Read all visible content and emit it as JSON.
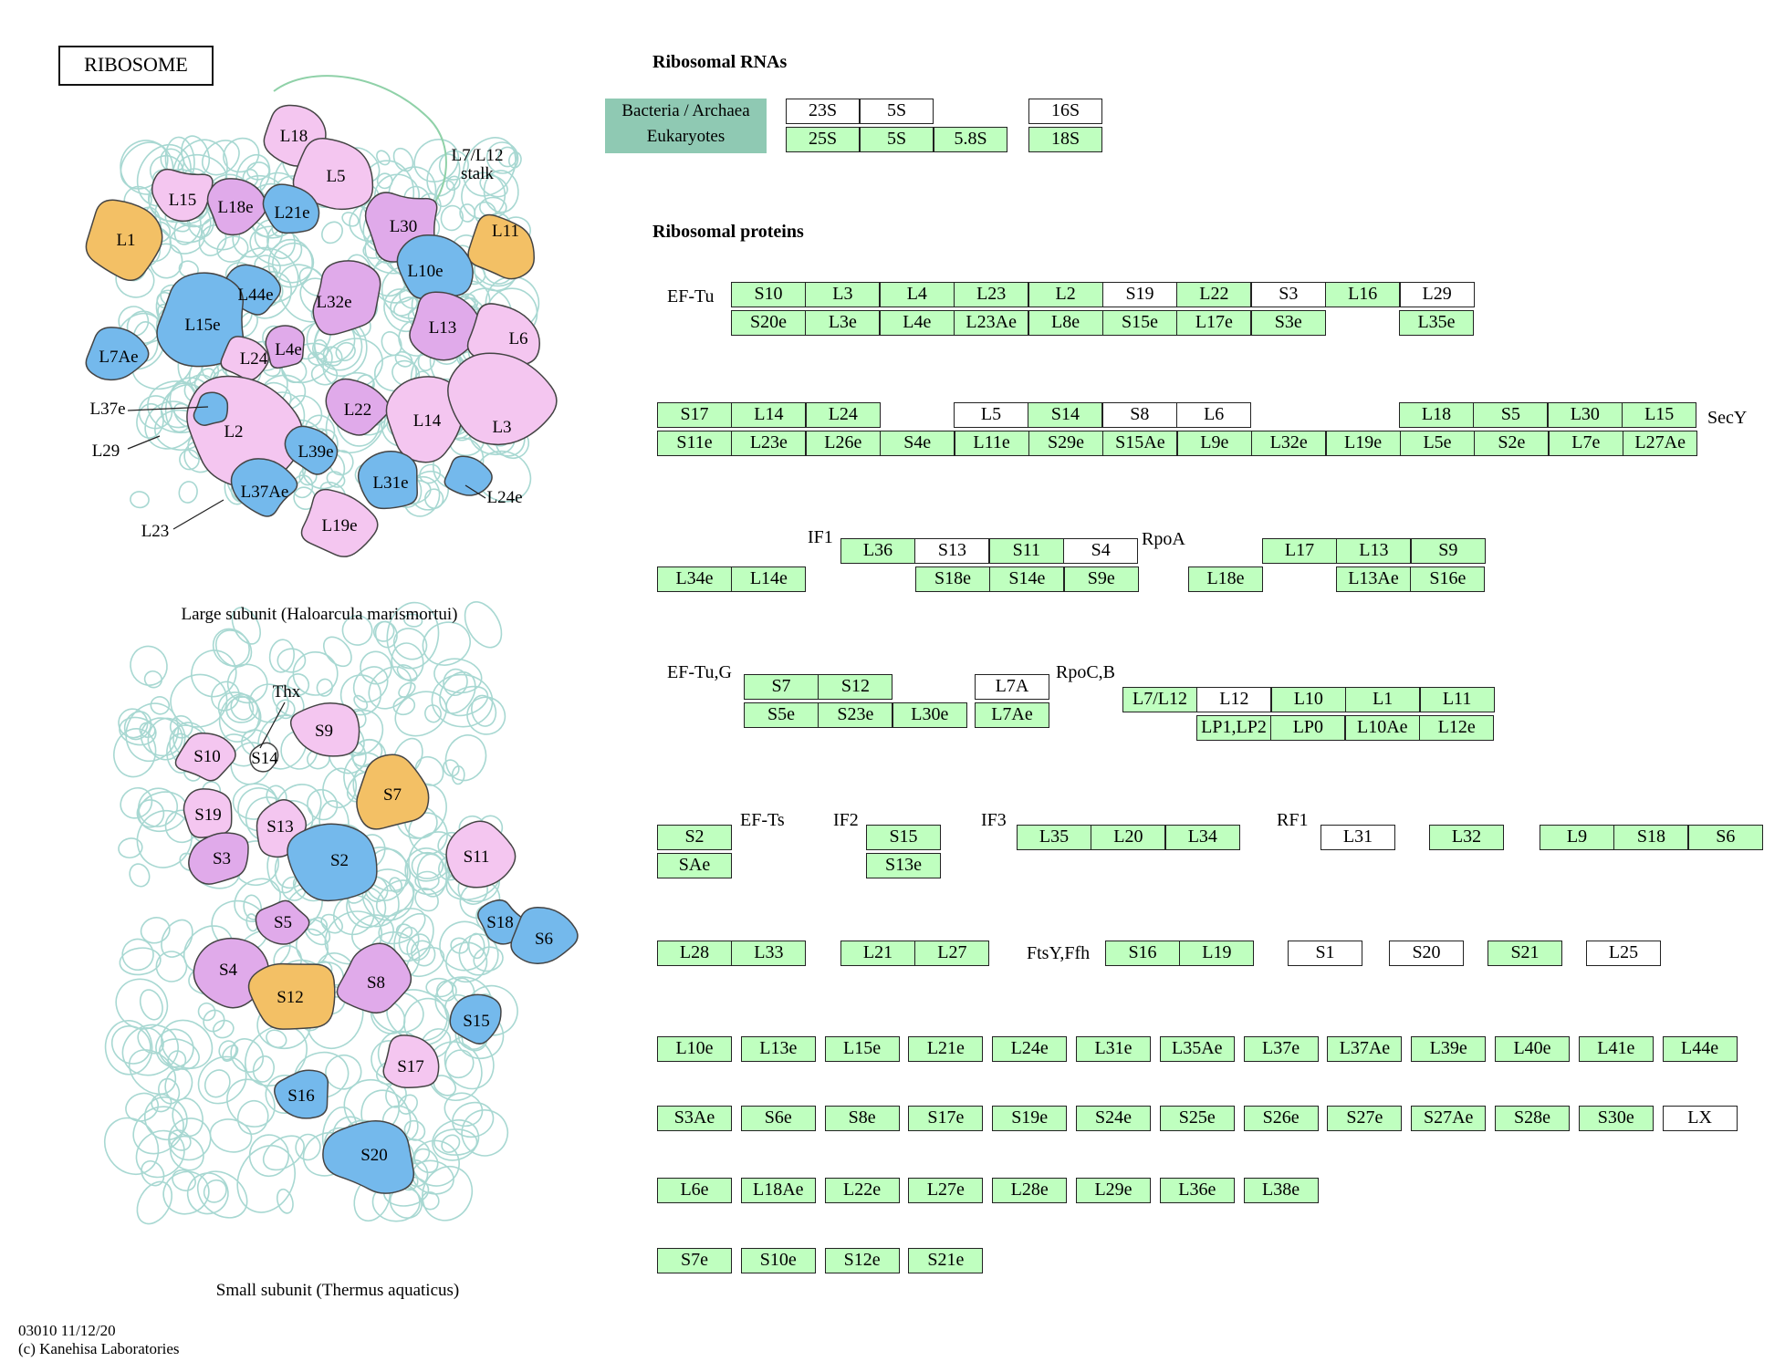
{
  "title": "RIBOSOME",
  "colors": {
    "green_box": "#bfffbf",
    "legend_bg": "#8fc9b3",
    "pink": "#f4c6f0",
    "purple": "#e0aaea",
    "blue": "#74b9ec",
    "orange": "#f3c065",
    "rna": "#a8d8d2"
  },
  "headers": {
    "rna": "Ribosomal RNAs",
    "proteins": "Ribosomal proteins"
  },
  "rna_legend": {
    "bacteria": "Bacteria / Archaea",
    "eukaryotes": "Eukaryotes"
  },
  "labels": {
    "ef_tu": "EF-Tu",
    "secy": "SecY",
    "if1": "IF1",
    "rpoa": "RpoA",
    "ef_tu_g": "EF-Tu,G",
    "rpocb": "RpoC,B",
    "ef_ts": "EF-Ts",
    "if2": "IF2",
    "if3": "IF3",
    "rf1": "RF1",
    "ftsy": "FtsY,Ffh"
  },
  "large_subunit": {
    "caption": "Large subunit (Haloarcula marismortui)",
    "callouts": {
      "stalk_line1": "L7/L12",
      "stalk_line2": "stalk",
      "l37e": "L37e",
      "l29": "L29",
      "l23": "L23",
      "l24e": "L24e"
    },
    "proteins": [
      {
        "label": "L1",
        "color": "orange"
      },
      {
        "label": "L11",
        "color": "orange"
      },
      {
        "label": "L18",
        "color": "pink"
      },
      {
        "label": "L5",
        "color": "pink"
      },
      {
        "label": "L15",
        "color": "pink"
      },
      {
        "label": "L18e",
        "color": "purple"
      },
      {
        "label": "L21e",
        "color": "blue"
      },
      {
        "label": "L30",
        "color": "purple"
      },
      {
        "label": "L10e",
        "color": "blue"
      },
      {
        "label": "L44e",
        "color": "blue"
      },
      {
        "label": "L32e",
        "color": "purple"
      },
      {
        "label": "L13",
        "color": "purple"
      },
      {
        "label": "L6",
        "color": "pink"
      },
      {
        "label": "L15e",
        "color": "blue"
      },
      {
        "label": "L7Ae",
        "color": "blue"
      },
      {
        "label": "L24",
        "color": "pink"
      },
      {
        "label": "L4e",
        "color": "purple"
      },
      {
        "label": "L2",
        "color": "pink"
      },
      {
        "label": "L22",
        "color": "purple"
      },
      {
        "label": "L14",
        "color": "pink"
      },
      {
        "label": "L3",
        "color": "pink"
      },
      {
        "label": "L39e",
        "color": "blue"
      },
      {
        "label": "L31e",
        "color": "blue"
      },
      {
        "label": "L37Ae",
        "color": "blue"
      },
      {
        "label": "L19e",
        "color": "pink"
      },
      {
        "label": "",
        "color": "blue"
      },
      {
        "label": "",
        "color": "blue"
      }
    ]
  },
  "small_subunit": {
    "caption": "Small subunit (Thermus aquaticus)",
    "callouts": {
      "thx": "Thx"
    },
    "proteins": [
      {
        "label": "S9",
        "color": "pink"
      },
      {
        "label": "S10",
        "color": "pink"
      },
      {
        "label": "S14",
        "color": "white"
      },
      {
        "label": "S7",
        "color": "orange"
      },
      {
        "label": "S19",
        "color": "pink"
      },
      {
        "label": "S13",
        "color": "pink"
      },
      {
        "label": "S3",
        "color": "purple"
      },
      {
        "label": "S2",
        "color": "blue"
      },
      {
        "label": "S11",
        "color": "pink"
      },
      {
        "label": "S18",
        "color": "blue"
      },
      {
        "label": "S6",
        "color": "blue"
      },
      {
        "label": "S5",
        "color": "purple"
      },
      {
        "label": "S4",
        "color": "purple"
      },
      {
        "label": "S12",
        "color": "orange"
      },
      {
        "label": "S8",
        "color": "purple"
      },
      {
        "label": "S15",
        "color": "blue"
      },
      {
        "label": "S17",
        "color": "pink"
      },
      {
        "label": "S16",
        "color": "blue"
      },
      {
        "label": "S20",
        "color": "blue"
      }
    ]
  },
  "rna_boxes": [
    {
      "label": "23S",
      "green": false
    },
    {
      "label": "5S",
      "green": false
    },
    {
      "label": "16S",
      "green": false
    },
    {
      "label": "25S",
      "green": true
    },
    {
      "label": "5S",
      "green": true
    },
    {
      "label": "5.8S",
      "green": true
    },
    {
      "label": "18S",
      "green": true
    }
  ],
  "protein_boxes": [
    {
      "label": "S10",
      "green": true
    },
    {
      "label": "L3",
      "green": true
    },
    {
      "label": "L4",
      "green": true
    },
    {
      "label": "L23",
      "green": true
    },
    {
      "label": "L2",
      "green": true
    },
    {
      "label": "S19",
      "green": false
    },
    {
      "label": "L22",
      "green": true
    },
    {
      "label": "S3",
      "green": false
    },
    {
      "label": "L16",
      "green": true
    },
    {
      "label": "L29",
      "green": false
    },
    {
      "label": "S20e",
      "green": true
    },
    {
      "label": "L3e",
      "green": true
    },
    {
      "label": "L4e",
      "green": true
    },
    {
      "label": "L23Ae",
      "green": true
    },
    {
      "label": "L8e",
      "green": true
    },
    {
      "label": "S15e",
      "green": true
    },
    {
      "label": "L17e",
      "green": true
    },
    {
      "label": "S3e",
      "green": true
    },
    {
      "label": "L35e",
      "green": true
    },
    {
      "label": "S17",
      "green": true
    },
    {
      "label": "L14",
      "green": true
    },
    {
      "label": "L24",
      "green": true
    },
    {
      "label": "L5",
      "green": false
    },
    {
      "label": "S14",
      "green": true
    },
    {
      "label": "S8",
      "green": false
    },
    {
      "label": "L6",
      "green": false
    },
    {
      "label": "L18",
      "green": true
    },
    {
      "label": "S5",
      "green": true
    },
    {
      "label": "L30",
      "green": true
    },
    {
      "label": "L15",
      "green": true
    },
    {
      "label": "S11e",
      "green": true
    },
    {
      "label": "L23e",
      "green": true
    },
    {
      "label": "L26e",
      "green": true
    },
    {
      "label": "S4e",
      "green": true
    },
    {
      "label": "L11e",
      "green": true
    },
    {
      "label": "S29e",
      "green": true
    },
    {
      "label": "S15Ae",
      "green": true
    },
    {
      "label": "L9e",
      "green": true
    },
    {
      "label": "L32e",
      "green": true
    },
    {
      "label": "L19e",
      "green": true
    },
    {
      "label": "L5e",
      "green": true
    },
    {
      "label": "S2e",
      "green": true
    },
    {
      "label": "L7e",
      "green": true
    },
    {
      "label": "L27Ae",
      "green": true
    },
    {
      "label": "L36",
      "green": true
    },
    {
      "label": "S13",
      "green": false
    },
    {
      "label": "S11",
      "green": true
    },
    {
      "label": "S4",
      "green": false
    },
    {
      "label": "L17",
      "green": true
    },
    {
      "label": "L13",
      "green": true
    },
    {
      "label": "S9",
      "green": true
    },
    {
      "label": "L34e",
      "green": true
    },
    {
      "label": "L14e",
      "green": true
    },
    {
      "label": "S18e",
      "green": true
    },
    {
      "label": "S14e",
      "green": true
    },
    {
      "label": "S9e",
      "green": true
    },
    {
      "label": "L18e",
      "green": true
    },
    {
      "label": "L13Ae",
      "green": true
    },
    {
      "label": "S16e",
      "green": true
    },
    {
      "label": "S7",
      "green": true
    },
    {
      "label": "S12",
      "green": true
    },
    {
      "label": "L7A",
      "green": false
    },
    {
      "label": "L7/L12",
      "green": true
    },
    {
      "label": "L12",
      "green": false
    },
    {
      "label": "L10",
      "green": true
    },
    {
      "label": "L1",
      "green": true
    },
    {
      "label": "L11",
      "green": true
    },
    {
      "label": "S5e",
      "green": true
    },
    {
      "label": "S23e",
      "green": true
    },
    {
      "label": "L30e",
      "green": true
    },
    {
      "label": "L7Ae",
      "green": true
    },
    {
      "label": "LP1,LP2",
      "green": true
    },
    {
      "label": "LP0",
      "green": true
    },
    {
      "label": "L10Ae",
      "green": true
    },
    {
      "label": "L12e",
      "green": true
    },
    {
      "label": "S2",
      "green": true
    },
    {
      "label": "SAe",
      "green": true
    },
    {
      "label": "S15",
      "green": true
    },
    {
      "label": "S13e",
      "green": true
    },
    {
      "label": "L35",
      "green": true
    },
    {
      "label": "L20",
      "green": true
    },
    {
      "label": "L34",
      "green": true
    },
    {
      "label": "L31",
      "green": false
    },
    {
      "label": "L32",
      "green": true
    },
    {
      "label": "L9",
      "green": true
    },
    {
      "label": "S18",
      "green": true
    },
    {
      "label": "S6",
      "green": true
    },
    {
      "label": "L28",
      "green": true
    },
    {
      "label": "L33",
      "green": true
    },
    {
      "label": "L21",
      "green": true
    },
    {
      "label": "L27",
      "green": true
    },
    {
      "label": "S16",
      "green": true
    },
    {
      "label": "L19",
      "green": true
    },
    {
      "label": "S1",
      "green": false
    },
    {
      "label": "S20",
      "green": false
    },
    {
      "label": "S21",
      "green": true
    },
    {
      "label": "L25",
      "green": false
    },
    {
      "label": "L10e",
      "green": true
    },
    {
      "label": "L13e",
      "green": true
    },
    {
      "label": "L15e",
      "green": true
    },
    {
      "label": "L21e",
      "green": true
    },
    {
      "label": "L24e",
      "green": true
    },
    {
      "label": "L31e",
      "green": true
    },
    {
      "label": "L35Ae",
      "green": true
    },
    {
      "label": "L37e",
      "green": true
    },
    {
      "label": "L37Ae",
      "green": true
    },
    {
      "label": "L39e",
      "green": true
    },
    {
      "label": "L40e",
      "green": true
    },
    {
      "label": "L41e",
      "green": true
    },
    {
      "label": "L44e",
      "green": true
    },
    {
      "label": "S3Ae",
      "green": true
    },
    {
      "label": "S6e",
      "green": true
    },
    {
      "label": "S8e",
      "green": true
    },
    {
      "label": "S17e",
      "green": true
    },
    {
      "label": "S19e",
      "green": true
    },
    {
      "label": "S24e",
      "green": true
    },
    {
      "label": "S25e",
      "green": true
    },
    {
      "label": "S26e",
      "green": true
    },
    {
      "label": "S27e",
      "green": true
    },
    {
      "label": "S27Ae",
      "green": true
    },
    {
      "label": "S28e",
      "green": true
    },
    {
      "label": "S30e",
      "green": true
    },
    {
      "label": "LX",
      "green": false
    },
    {
      "label": "L6e",
      "green": true
    },
    {
      "label": "L18Ae",
      "green": true
    },
    {
      "label": "L22e",
      "green": true
    },
    {
      "label": "L27e",
      "green": true
    },
    {
      "label": "L28e",
      "green": true
    },
    {
      "label": "L29e",
      "green": true
    },
    {
      "label": "L36e",
      "green": true
    },
    {
      "label": "L38e",
      "green": true
    },
    {
      "label": "S7e",
      "green": true
    },
    {
      "label": "S10e",
      "green": true
    },
    {
      "label": "S12e",
      "green": true
    },
    {
      "label": "S21e",
      "green": true
    }
  ],
  "footer": {
    "line1": "03010 11/12/20",
    "line2": "(c) Kanehisa Laboratories"
  }
}
